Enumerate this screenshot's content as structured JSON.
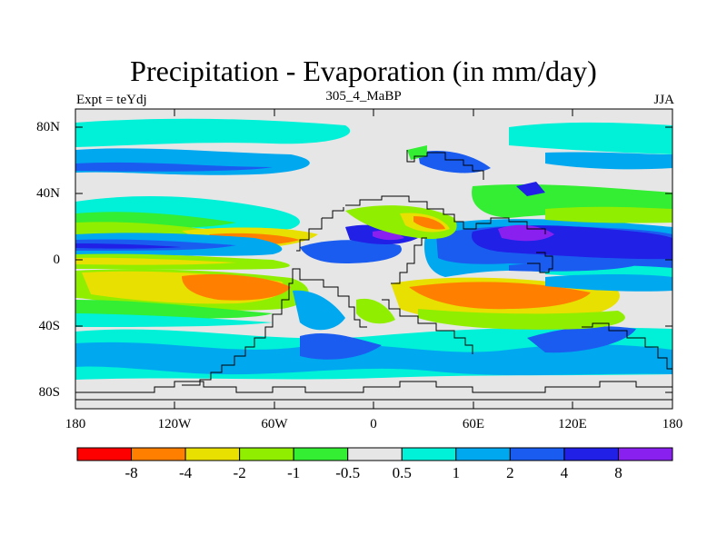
{
  "title": "Precipitation - Evaporation (in mm/day)",
  "subtitle_left": "Expt = teYdj",
  "subtitle_center": "305_4_MaBP",
  "subtitle_right": "JJA",
  "lat_labels": [
    "80N",
    "40N",
    "0",
    "40S",
    "80S"
  ],
  "lon_labels": [
    "180",
    "120W",
    "60W",
    "0",
    "60E",
    "120E",
    "180"
  ],
  "colorbar": {
    "labels": [
      "-8",
      "-4",
      "-2",
      "-1",
      "-0.5",
      "0.5",
      "1",
      "2",
      "4",
      "8"
    ],
    "colors": [
      "#ff0000",
      "#ff8000",
      "#e8e000",
      "#90ee00",
      "#33ee33",
      "#e6e6e6",
      "#00f0d8",
      "#00a8f0",
      "#1a5cf0",
      "#2020e6",
      "#8a20f0"
    ]
  }
}
